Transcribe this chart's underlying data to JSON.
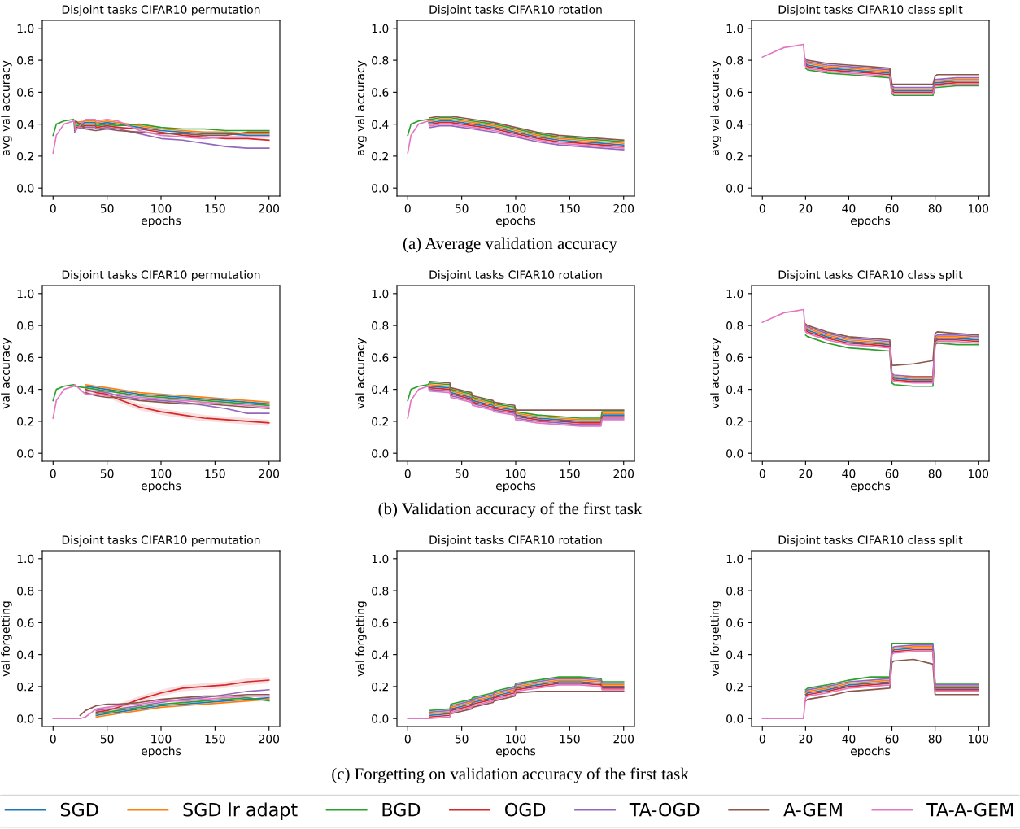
{
  "chart_data": [
    {
      "type": "line",
      "title": "Disjoint tasks CIFAR10 permutation",
      "xlabel": "epochs",
      "ylabel": "avg val accuracy",
      "xlim": [
        -10,
        210
      ],
      "xticks": [
        0,
        50,
        100,
        150,
        200
      ],
      "ylim": [
        -0.05,
        1.05
      ],
      "yticks": [
        {
          "value": 0,
          "label": "0.0"
        },
        {
          "value": 0.2,
          "label": "0.2"
        },
        {
          "value": 0.4,
          "label": "0.4"
        },
        {
          "value": 0.6,
          "label": "0.6"
        },
        {
          "value": 0.8,
          "label": "0.8"
        },
        {
          "value": 1,
          "label": "1.0"
        }
      ],
      "x": [
        0,
        3,
        10,
        19,
        20,
        21,
        30,
        39,
        40,
        50,
        60,
        80,
        100,
        120,
        140,
        160,
        180,
        200
      ],
      "series": [
        {
          "color": "#1f77b4",
          "values": [
            null,
            null,
            null,
            null,
            0.38,
            0.4,
            0.41,
            0.41,
            0.4,
            0.41,
            0.4,
            0.38,
            0.36,
            0.35,
            0.34,
            0.34,
            0.33,
            0.33
          ]
        },
        {
          "color": "#ff7f0e",
          "values": [
            null,
            null,
            null,
            null,
            0.39,
            0.41,
            0.42,
            0.42,
            0.41,
            0.42,
            0.41,
            0.39,
            0.37,
            0.36,
            0.35,
            0.35,
            0.34,
            0.34
          ]
        },
        {
          "color": "#2ca02c",
          "values": [
            0.33,
            0.4,
            0.42,
            0.43,
            0.37,
            0.39,
            0.4,
            0.4,
            0.39,
            0.4,
            0.39,
            0.4,
            0.38,
            0.37,
            0.37,
            0.36,
            0.36,
            0.36
          ]
        },
        {
          "color": "#d62728",
          "values": [
            null,
            null,
            null,
            null,
            0.36,
            0.38,
            0.39,
            0.39,
            0.38,
            0.39,
            0.38,
            0.37,
            0.35,
            0.33,
            0.32,
            0.31,
            0.31,
            0.3
          ]
        },
        {
          "color": "#9467bd",
          "values": [
            null,
            null,
            null,
            null,
            0.35,
            0.37,
            0.38,
            0.38,
            0.37,
            0.38,
            0.37,
            0.34,
            0.31,
            0.3,
            0.28,
            0.26,
            0.25,
            0.25
          ]
        },
        {
          "color": "#8c564b",
          "values": [
            null,
            null,
            null,
            null,
            0.41,
            0.42,
            0.37,
            0.36,
            0.36,
            0.37,
            0.36,
            0.35,
            0.34,
            0.34,
            0.33,
            0.33,
            0.35,
            0.35
          ]
        },
        {
          "color": "#e377c2",
          "values": [
            0.22,
            0.33,
            0.4,
            0.42,
            0.4,
            0.36,
            0.43,
            0.43,
            0.42,
            0.43,
            0.42,
            0.36,
            0.33,
            0.32,
            0.31,
            0.32,
            0.32,
            0.32
          ]
        }
      ]
    },
    {
      "type": "line",
      "title": "Disjoint tasks CIFAR10 rotation",
      "xlabel": "epochs",
      "ylabel": "avg val accuracy",
      "xlim": [
        -10,
        210
      ],
      "xticks": [
        0,
        50,
        100,
        150,
        200
      ],
      "ylim": [
        -0.05,
        1.05
      ],
      "yticks": [
        {
          "value": 0,
          "label": "0.0"
        },
        {
          "value": 0.2,
          "label": "0.2"
        },
        {
          "value": 0.4,
          "label": "0.4"
        },
        {
          "value": 0.6,
          "label": "0.6"
        },
        {
          "value": 0.8,
          "label": "0.8"
        },
        {
          "value": 1,
          "label": "1.0"
        }
      ],
      "annotations": [
        "(a) Average validation accuracy"
      ],
      "x": [
        0,
        3,
        10,
        19,
        20,
        21,
        30,
        39,
        40,
        50,
        60,
        80,
        100,
        120,
        140,
        160,
        180,
        200
      ],
      "series": [
        {
          "color": "#1f77b4",
          "values": [
            null,
            null,
            null,
            null,
            0.41,
            0.41,
            0.42,
            0.42,
            0.42,
            0.41,
            0.4,
            0.38,
            0.35,
            0.32,
            0.3,
            0.29,
            0.28,
            0.27
          ]
        },
        {
          "color": "#ff7f0e",
          "values": [
            null,
            null,
            null,
            null,
            0.42,
            0.42,
            0.43,
            0.43,
            0.43,
            0.42,
            0.41,
            0.39,
            0.36,
            0.33,
            0.31,
            0.3,
            0.29,
            0.28
          ]
        },
        {
          "color": "#2ca02c",
          "values": [
            0.33,
            0.4,
            0.42,
            0.43,
            0.43,
            0.43,
            0.44,
            0.44,
            0.44,
            0.43,
            0.42,
            0.4,
            0.37,
            0.34,
            0.32,
            0.31,
            0.3,
            0.29
          ]
        },
        {
          "color": "#d62728",
          "values": [
            null,
            null,
            null,
            null,
            0.4,
            0.4,
            0.41,
            0.41,
            0.41,
            0.4,
            0.39,
            0.37,
            0.34,
            0.31,
            0.29,
            0.28,
            0.27,
            0.26
          ]
        },
        {
          "color": "#9467bd",
          "values": [
            null,
            null,
            null,
            null,
            0.38,
            0.38,
            0.39,
            0.39,
            0.39,
            0.38,
            0.37,
            0.35,
            0.32,
            0.29,
            0.27,
            0.26,
            0.25,
            0.24
          ]
        },
        {
          "color": "#8c564b",
          "values": [
            null,
            null,
            null,
            null,
            0.44,
            0.44,
            0.45,
            0.45,
            0.45,
            0.44,
            0.43,
            0.41,
            0.38,
            0.35,
            0.33,
            0.32,
            0.31,
            0.3
          ]
        },
        {
          "color": "#e377c2",
          "values": [
            0.22,
            0.33,
            0.4,
            0.42,
            0.39,
            0.39,
            0.4,
            0.4,
            0.4,
            0.39,
            0.38,
            0.36,
            0.33,
            0.3,
            0.28,
            0.27,
            0.26,
            0.25
          ]
        }
      ]
    },
    {
      "type": "line",
      "title": "Disjoint tasks CIFAR10 class split",
      "xlabel": "epochs",
      "ylabel": "avg val accuracy",
      "xlim": [
        -5,
        105
      ],
      "xticks": [
        0,
        20,
        40,
        60,
        80,
        100
      ],
      "ylim": [
        -0.05,
        1.05
      ],
      "yticks": [
        {
          "value": 0,
          "label": "0.0"
        },
        {
          "value": 0.2,
          "label": "0.2"
        },
        {
          "value": 0.4,
          "label": "0.4"
        },
        {
          "value": 0.6,
          "label": "0.6"
        },
        {
          "value": 0.8,
          "label": "0.8"
        },
        {
          "value": 1,
          "label": "1.0"
        }
      ],
      "x": [
        0,
        5,
        10,
        15,
        19,
        20,
        21,
        30,
        40,
        50,
        59,
        60,
        61,
        70,
        79,
        80,
        81,
        90,
        100
      ],
      "series": [
        {
          "color": "#1f77b4",
          "values": [
            null,
            null,
            null,
            null,
            null,
            0.78,
            0.77,
            0.75,
            0.74,
            0.73,
            0.72,
            0.62,
            0.61,
            0.61,
            0.61,
            0.66,
            0.66,
            0.67,
            0.67
          ]
        },
        {
          "color": "#ff7f0e",
          "values": [
            null,
            null,
            null,
            null,
            null,
            0.79,
            0.78,
            0.76,
            0.75,
            0.74,
            0.73,
            0.63,
            0.62,
            0.62,
            0.62,
            0.67,
            0.67,
            0.68,
            0.68
          ]
        },
        {
          "color": "#2ca02c",
          "values": [
            null,
            null,
            null,
            null,
            null,
            0.75,
            0.74,
            0.72,
            0.71,
            0.7,
            0.69,
            0.59,
            0.58,
            0.58,
            0.58,
            0.63,
            0.63,
            0.64,
            0.64
          ]
        },
        {
          "color": "#d62728",
          "values": [
            null,
            null,
            null,
            null,
            null,
            0.77,
            0.76,
            0.74,
            0.73,
            0.72,
            0.71,
            0.61,
            0.6,
            0.6,
            0.6,
            0.65,
            0.65,
            0.66,
            0.66
          ]
        },
        {
          "color": "#9467bd",
          "values": [
            null,
            null,
            null,
            null,
            null,
            0.8,
            0.79,
            0.77,
            0.76,
            0.75,
            0.74,
            0.64,
            0.63,
            0.63,
            0.63,
            0.68,
            0.68,
            0.69,
            0.69
          ]
        },
        {
          "color": "#8c564b",
          "values": [
            null,
            null,
            null,
            null,
            null,
            0.81,
            0.8,
            0.78,
            0.77,
            0.76,
            0.75,
            0.65,
            0.65,
            0.65,
            0.65,
            0.7,
            0.71,
            0.71,
            0.71
          ]
        },
        {
          "color": "#e377c2",
          "values": [
            0.82,
            0.85,
            0.88,
            0.89,
            0.9,
            0.76,
            0.75,
            0.73,
            0.72,
            0.71,
            0.7,
            0.6,
            0.59,
            0.59,
            0.59,
            0.64,
            0.64,
            0.65,
            0.65
          ]
        }
      ]
    },
    {
      "type": "line",
      "title": "Disjoint tasks CIFAR10 permutation",
      "xlabel": "epochs",
      "ylabel": "val accuracy",
      "xlim": [
        -10,
        210
      ],
      "xticks": [
        0,
        50,
        100,
        150,
        200
      ],
      "ylim": [
        -0.05,
        1.05
      ],
      "yticks": [
        {
          "value": 0,
          "label": "0.0"
        },
        {
          "value": 0.2,
          "label": "0.2"
        },
        {
          "value": 0.4,
          "label": "0.4"
        },
        {
          "value": 0.6,
          "label": "0.6"
        },
        {
          "value": 0.8,
          "label": "0.8"
        },
        {
          "value": 1,
          "label": "1.0"
        }
      ],
      "x": [
        0,
        3,
        10,
        19,
        20,
        30,
        40,
        50,
        60,
        80,
        100,
        120,
        140,
        160,
        180,
        200
      ],
      "series": [
        {
          "color": "#1f77b4",
          "values": [
            null,
            null,
            null,
            null,
            null,
            0.42,
            0.41,
            0.4,
            0.39,
            0.37,
            0.36,
            0.35,
            0.34,
            0.33,
            0.32,
            0.31
          ]
        },
        {
          "color": "#ff7f0e",
          "values": [
            null,
            null,
            null,
            null,
            null,
            0.43,
            0.42,
            0.41,
            0.4,
            0.38,
            0.37,
            0.36,
            0.35,
            0.34,
            0.33,
            0.32
          ]
        },
        {
          "color": "#2ca02c",
          "values": [
            0.33,
            0.4,
            0.42,
            0.43,
            0.42,
            0.41,
            0.4,
            0.39,
            0.38,
            0.36,
            0.35,
            0.34,
            0.33,
            0.32,
            0.31,
            0.3
          ]
        },
        {
          "color": "#d62728",
          "values": [
            null,
            null,
            null,
            null,
            null,
            0.4,
            0.38,
            0.37,
            0.34,
            0.29,
            0.26,
            0.24,
            0.22,
            0.21,
            0.2,
            0.19
          ],
          "lower": [
            null,
            null,
            null,
            null,
            null,
            0.39,
            0.37,
            0.35,
            0.32,
            0.27,
            0.24,
            0.22,
            0.2,
            0.19,
            0.18,
            0.17
          ],
          "upper": [
            null,
            null,
            null,
            null,
            null,
            0.41,
            0.39,
            0.39,
            0.36,
            0.31,
            0.28,
            0.26,
            0.24,
            0.23,
            0.22,
            0.21
          ]
        },
        {
          "color": "#9467bd",
          "values": [
            null,
            null,
            null,
            null,
            null,
            0.39,
            0.39,
            0.38,
            0.36,
            0.34,
            0.33,
            0.32,
            0.3,
            0.28,
            0.25,
            0.25
          ]
        },
        {
          "color": "#8c564b",
          "values": [
            null,
            null,
            null,
            null,
            null,
            0.38,
            0.36,
            0.35,
            0.35,
            0.33,
            0.32,
            0.31,
            0.31,
            0.3,
            0.29,
            0.28
          ]
        },
        {
          "color": "#e377c2",
          "values": [
            0.22,
            0.33,
            0.4,
            0.42,
            0.43,
            0.37,
            0.37,
            0.36,
            0.37,
            0.35,
            0.34,
            0.33,
            0.32,
            0.31,
            0.3,
            0.29
          ]
        }
      ]
    },
    {
      "type": "line",
      "title": "Disjoint tasks CIFAR10 rotation",
      "xlabel": "epochs",
      "ylabel": "val accuracy",
      "xlim": [
        -10,
        210
      ],
      "xticks": [
        0,
        50,
        100,
        150,
        200
      ],
      "ylim": [
        -0.05,
        1.05
      ],
      "yticks": [
        {
          "value": 0,
          "label": "0.0"
        },
        {
          "value": 0.2,
          "label": "0.2"
        },
        {
          "value": 0.4,
          "label": "0.4"
        },
        {
          "value": 0.6,
          "label": "0.6"
        },
        {
          "value": 0.8,
          "label": "0.8"
        },
        {
          "value": 1,
          "label": "1.0"
        }
      ],
      "annotations": [
        "(b) Validation accuracy of the first task"
      ],
      "x": [
        0,
        3,
        10,
        19,
        20,
        39,
        40,
        59,
        60,
        79,
        80,
        99,
        100,
        120,
        140,
        160,
        179,
        180,
        200
      ],
      "series": [
        {
          "color": "#1f77b4",
          "values": [
            null,
            null,
            null,
            null,
            0.42,
            0.41,
            0.38,
            0.35,
            0.33,
            0.3,
            0.29,
            0.27,
            0.24,
            0.22,
            0.21,
            0.2,
            0.2,
            0.24,
            0.24
          ]
        },
        {
          "color": "#ff7f0e",
          "values": [
            null,
            null,
            null,
            null,
            0.43,
            0.42,
            0.39,
            0.36,
            0.34,
            0.31,
            0.3,
            0.28,
            0.25,
            0.23,
            0.22,
            0.21,
            0.21,
            0.25,
            0.25
          ]
        },
        {
          "color": "#2ca02c",
          "values": [
            0.33,
            0.4,
            0.42,
            0.43,
            0.44,
            0.43,
            0.4,
            0.37,
            0.35,
            0.32,
            0.31,
            0.29,
            0.26,
            0.24,
            0.23,
            0.22,
            0.22,
            0.26,
            0.26
          ]
        },
        {
          "color": "#d62728",
          "values": [
            null,
            null,
            null,
            null,
            0.41,
            0.4,
            0.37,
            0.34,
            0.32,
            0.29,
            0.28,
            0.26,
            0.23,
            0.21,
            0.2,
            0.19,
            0.19,
            0.23,
            0.23
          ]
        },
        {
          "color": "#9467bd",
          "values": [
            null,
            null,
            null,
            null,
            0.4,
            0.39,
            0.36,
            0.33,
            0.31,
            0.28,
            0.27,
            0.25,
            0.22,
            0.2,
            0.19,
            0.18,
            0.18,
            0.22,
            0.22
          ]
        },
        {
          "color": "#8c564b",
          "values": [
            null,
            null,
            null,
            null,
            0.45,
            0.44,
            0.41,
            0.38,
            0.36,
            0.33,
            0.32,
            0.3,
            0.27,
            0.27,
            0.27,
            0.27,
            0.27,
            0.27,
            0.27
          ]
        },
        {
          "color": "#e377c2",
          "values": [
            0.22,
            0.33,
            0.4,
            0.42,
            0.39,
            0.38,
            0.35,
            0.32,
            0.3,
            0.27,
            0.26,
            0.24,
            0.21,
            0.19,
            0.18,
            0.17,
            0.17,
            0.21,
            0.21
          ]
        }
      ]
    },
    {
      "type": "line",
      "title": "Disjoint tasks CIFAR10 class split",
      "xlabel": "epochs",
      "ylabel": "val accuracy",
      "xlim": [
        -5,
        105
      ],
      "xticks": [
        0,
        20,
        40,
        60,
        80,
        100
      ],
      "ylim": [
        -0.05,
        1.05
      ],
      "yticks": [
        {
          "value": 0,
          "label": "0.0"
        },
        {
          "value": 0.2,
          "label": "0.2"
        },
        {
          "value": 0.4,
          "label": "0.4"
        },
        {
          "value": 0.6,
          "label": "0.6"
        },
        {
          "value": 0.8,
          "label": "0.8"
        },
        {
          "value": 1,
          "label": "1.0"
        }
      ],
      "x": [
        0,
        5,
        10,
        15,
        19,
        20,
        21,
        30,
        40,
        50,
        59,
        60,
        61,
        70,
        79,
        80,
        81,
        90,
        100
      ],
      "series": [
        {
          "color": "#1f77b4",
          "values": [
            null,
            null,
            null,
            null,
            null,
            0.78,
            0.77,
            0.73,
            0.7,
            0.69,
            0.68,
            0.48,
            0.47,
            0.46,
            0.46,
            0.71,
            0.72,
            0.72,
            0.71
          ]
        },
        {
          "color": "#ff7f0e",
          "values": [
            null,
            null,
            null,
            null,
            null,
            0.79,
            0.78,
            0.74,
            0.71,
            0.7,
            0.69,
            0.49,
            0.48,
            0.47,
            0.47,
            0.72,
            0.73,
            0.73,
            0.72
          ]
        },
        {
          "color": "#2ca02c",
          "values": [
            null,
            null,
            null,
            null,
            null,
            0.74,
            0.73,
            0.69,
            0.66,
            0.65,
            0.64,
            0.44,
            0.43,
            0.42,
            0.42,
            0.68,
            0.69,
            0.68,
            0.68
          ]
        },
        {
          "color": "#d62728",
          "values": [
            null,
            null,
            null,
            null,
            null,
            0.77,
            0.76,
            0.72,
            0.69,
            0.68,
            0.67,
            0.47,
            0.46,
            0.45,
            0.45,
            0.7,
            0.71,
            0.71,
            0.7
          ]
        },
        {
          "color": "#9467bd",
          "values": [
            null,
            null,
            null,
            null,
            null,
            0.8,
            0.79,
            0.75,
            0.72,
            0.71,
            0.7,
            0.5,
            0.49,
            0.48,
            0.48,
            0.73,
            0.74,
            0.74,
            0.73
          ]
        },
        {
          "color": "#8c564b",
          "values": [
            null,
            null,
            null,
            null,
            null,
            0.81,
            0.8,
            0.76,
            0.73,
            0.72,
            0.71,
            0.55,
            0.55,
            0.56,
            0.58,
            0.75,
            0.76,
            0.75,
            0.74
          ]
        },
        {
          "color": "#e377c2",
          "values": [
            0.82,
            0.85,
            0.88,
            0.89,
            0.9,
            0.76,
            0.75,
            0.71,
            0.68,
            0.67,
            0.66,
            0.46,
            0.45,
            0.44,
            0.44,
            0.69,
            0.7,
            0.7,
            0.69
          ]
        }
      ]
    },
    {
      "type": "line",
      "title": "Disjoint tasks CIFAR10 permutation",
      "xlabel": "epochs",
      "ylabel": "val forgetting",
      "xlim": [
        -10,
        210
      ],
      "xticks": [
        0,
        50,
        100,
        150,
        200
      ],
      "ylim": [
        -0.05,
        1.05
      ],
      "yticks": [
        {
          "value": 0,
          "label": "0.0"
        },
        {
          "value": 0.2,
          "label": "0.2"
        },
        {
          "value": 0.4,
          "label": "0.4"
        },
        {
          "value": 0.6,
          "label": "0.6"
        },
        {
          "value": 0.8,
          "label": "0.8"
        },
        {
          "value": 1,
          "label": "1.0"
        }
      ],
      "x": [
        0,
        10,
        20,
        25,
        30,
        40,
        50,
        60,
        80,
        100,
        120,
        140,
        160,
        180,
        200
      ],
      "series": [
        {
          "color": "#1f77b4",
          "values": [
            null,
            null,
            null,
            null,
            null,
            0.02,
            0.03,
            0.04,
            0.06,
            0.08,
            0.09,
            0.1,
            0.11,
            0.12,
            0.13
          ]
        },
        {
          "color": "#ff7f0e",
          "values": [
            null,
            null,
            null,
            null,
            null,
            0.01,
            0.02,
            0.03,
            0.05,
            0.07,
            0.08,
            0.09,
            0.1,
            0.11,
            0.12
          ]
        },
        {
          "color": "#2ca02c",
          "values": [
            null,
            null,
            null,
            null,
            null,
            0.03,
            0.04,
            0.05,
            0.07,
            0.09,
            0.1,
            0.11,
            0.12,
            0.13,
            0.11
          ]
        },
        {
          "color": "#d62728",
          "values": [
            null,
            null,
            null,
            null,
            null,
            0.04,
            0.05,
            0.07,
            0.12,
            0.16,
            0.19,
            0.2,
            0.21,
            0.23,
            0.24
          ],
          "lower": [
            null,
            null,
            null,
            null,
            null,
            0.03,
            0.04,
            0.05,
            0.1,
            0.14,
            0.17,
            0.18,
            0.19,
            0.21,
            0.22
          ],
          "upper": [
            null,
            null,
            null,
            null,
            null,
            0.05,
            0.06,
            0.09,
            0.14,
            0.18,
            0.21,
            0.22,
            0.23,
            0.25,
            0.26
          ]
        },
        {
          "color": "#9467bd",
          "values": [
            null,
            null,
            null,
            null,
            null,
            0.05,
            0.06,
            0.06,
            0.08,
            0.1,
            0.12,
            0.13,
            0.15,
            0.17,
            0.18
          ]
        },
        {
          "color": "#8c564b",
          "values": [
            null,
            null,
            null,
            0.02,
            0.05,
            0.08,
            0.09,
            0.09,
            0.1,
            0.12,
            0.13,
            0.14,
            0.14,
            0.15,
            0.15
          ]
        },
        {
          "color": "#e377c2",
          "values": [
            0,
            0,
            0,
            0,
            0.01,
            0.06,
            0.07,
            0.08,
            0.09,
            0.11,
            0.11,
            0.12,
            0.13,
            0.14,
            0.14
          ]
        }
      ]
    },
    {
      "type": "line",
      "title": "Disjoint tasks CIFAR10 rotation",
      "xlabel": "epochs",
      "ylabel": "val forgetting",
      "xlim": [
        -10,
        210
      ],
      "xticks": [
        0,
        50,
        100,
        150,
        200
      ],
      "ylim": [
        -0.05,
        1.05
      ],
      "yticks": [
        {
          "value": 0,
          "label": "0.0"
        },
        {
          "value": 0.2,
          "label": "0.2"
        },
        {
          "value": 0.4,
          "label": "0.4"
        },
        {
          "value": 0.6,
          "label": "0.6"
        },
        {
          "value": 0.8,
          "label": "0.8"
        },
        {
          "value": 1,
          "label": "1.0"
        }
      ],
      "annotations": [
        "(c) Forgetting on validation accuracy of the first task"
      ],
      "legend": "bottom",
      "x": [
        0,
        19,
        20,
        39,
        40,
        59,
        60,
        79,
        80,
        99,
        100,
        120,
        140,
        160,
        179,
        180,
        200
      ],
      "series": [
        {
          "name": "SGD",
          "color": "#1f77b4",
          "values": [
            null,
            null,
            0.02,
            0.03,
            0.06,
            0.09,
            0.1,
            0.13,
            0.14,
            0.17,
            0.19,
            0.21,
            0.23,
            0.23,
            0.22,
            0.2,
            0.2
          ]
        },
        {
          "name": "SGD lr adapt",
          "color": "#ff7f0e",
          "values": [
            null,
            null,
            0.03,
            0.04,
            0.07,
            0.1,
            0.11,
            0.14,
            0.15,
            0.18,
            0.2,
            0.22,
            0.24,
            0.24,
            0.23,
            0.21,
            0.21
          ]
        },
        {
          "name": "BGD",
          "color": "#2ca02c",
          "values": [
            null,
            null,
            0.05,
            0.06,
            0.09,
            0.12,
            0.13,
            0.16,
            0.17,
            0.2,
            0.22,
            0.24,
            0.26,
            0.26,
            0.25,
            0.23,
            0.23
          ]
        },
        {
          "name": "OGD",
          "color": "#d62728",
          "values": [
            null,
            null,
            0.01,
            0.02,
            0.05,
            0.08,
            0.09,
            0.12,
            0.13,
            0.16,
            0.18,
            0.2,
            0.22,
            0.22,
            0.21,
            0.19,
            0.19
          ]
        },
        {
          "name": "TA-OGD",
          "color": "#9467bd",
          "values": [
            null,
            null,
            0.04,
            0.05,
            0.08,
            0.11,
            0.12,
            0.15,
            0.16,
            0.19,
            0.21,
            0.23,
            0.25,
            0.25,
            0.24,
            0.22,
            0.22
          ]
        },
        {
          "name": "A-GEM",
          "color": "#8c564b",
          "values": [
            null,
            null,
            null,
            null,
            0.03,
            0.06,
            0.07,
            0.1,
            0.11,
            0.14,
            0.16,
            0.17,
            0.17,
            0.17,
            0.17,
            0.17,
            0.17
          ]
        },
        {
          "name": "TA-A-GEM",
          "color": "#e377c2",
          "values": [
            0,
            0,
            0.0,
            0.01,
            0.04,
            0.07,
            0.08,
            0.11,
            0.12,
            0.15,
            0.17,
            0.19,
            0.21,
            0.21,
            0.2,
            0.18,
            0.18
          ]
        }
      ]
    },
    {
      "type": "line",
      "title": "Disjoint tasks CIFAR10 class split",
      "xlabel": "epochs",
      "ylabel": "val forgetting",
      "xlim": [
        -5,
        105
      ],
      "xticks": [
        0,
        20,
        40,
        60,
        80,
        100
      ],
      "ylim": [
        -0.05,
        1.05
      ],
      "yticks": [
        {
          "value": 0,
          "label": "0.0"
        },
        {
          "value": 0.2,
          "label": "0.2"
        },
        {
          "value": 0.4,
          "label": "0.4"
        },
        {
          "value": 0.6,
          "label": "0.6"
        },
        {
          "value": 0.8,
          "label": "0.8"
        },
        {
          "value": 1,
          "label": "1.0"
        }
      ],
      "x": [
        0,
        5,
        10,
        15,
        19,
        20,
        21,
        30,
        40,
        50,
        59,
        60,
        61,
        70,
        79,
        80,
        81,
        90,
        100
      ],
      "series": [
        {
          "color": "#1f77b4",
          "values": [
            null,
            null,
            null,
            null,
            null,
            0.15,
            0.16,
            0.18,
            0.21,
            0.22,
            0.23,
            0.42,
            0.43,
            0.44,
            0.44,
            0.19,
            0.19,
            0.19,
            0.19
          ]
        },
        {
          "color": "#ff7f0e",
          "values": [
            null,
            null,
            null,
            null,
            null,
            0.16,
            0.17,
            0.19,
            0.22,
            0.23,
            0.24,
            0.43,
            0.44,
            0.45,
            0.45,
            0.2,
            0.2,
            0.2,
            0.2
          ]
        },
        {
          "color": "#2ca02c",
          "values": [
            null,
            null,
            null,
            null,
            null,
            0.18,
            0.19,
            0.21,
            0.24,
            0.26,
            0.26,
            0.47,
            0.47,
            0.47,
            0.47,
            0.22,
            0.22,
            0.22,
            0.22
          ]
        },
        {
          "color": "#d62728",
          "values": [
            null,
            null,
            null,
            null,
            null,
            0.14,
            0.15,
            0.17,
            0.2,
            0.21,
            0.22,
            0.41,
            0.42,
            0.43,
            0.43,
            0.18,
            0.18,
            0.18,
            0.18
          ]
        },
        {
          "color": "#9467bd",
          "values": [
            null,
            null,
            null,
            null,
            null,
            0.17,
            0.18,
            0.2,
            0.23,
            0.24,
            0.25,
            0.44,
            0.45,
            0.46,
            0.46,
            0.21,
            0.21,
            0.21,
            0.21
          ]
        },
        {
          "color": "#8c564b",
          "values": [
            null,
            null,
            null,
            null,
            null,
            0.11,
            0.12,
            0.14,
            0.17,
            0.18,
            0.19,
            0.35,
            0.36,
            0.37,
            0.34,
            0.15,
            0.15,
            0.15,
            0.15
          ]
        },
        {
          "color": "#e377c2",
          "values": [
            0,
            0,
            0,
            0,
            0,
            0.13,
            0.14,
            0.16,
            0.19,
            0.2,
            0.21,
            0.4,
            0.41,
            0.42,
            0.42,
            0.17,
            0.17,
            0.17,
            0.17
          ]
        }
      ]
    }
  ]
}
